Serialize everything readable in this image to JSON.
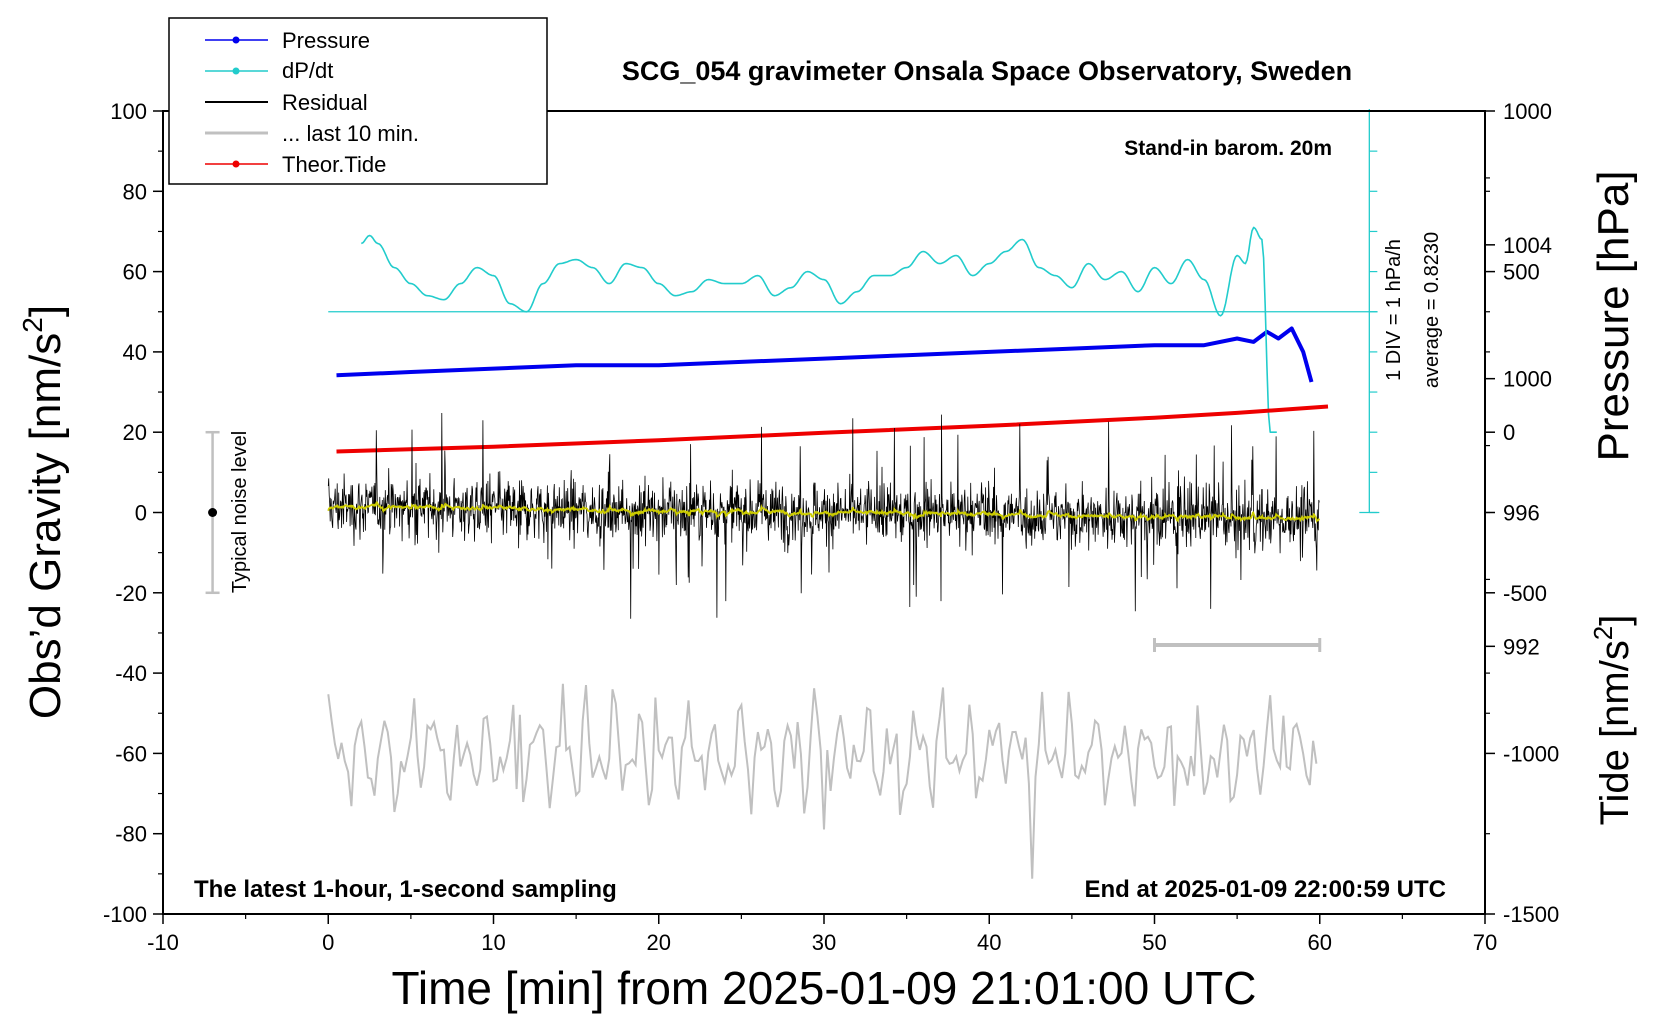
{
  "chart_data": {
    "type": "line",
    "title": "SCG_054 gravimeter Onsala Space Observatory, Sweden",
    "xlabel": "Time [min] from 2025-01-09 21:01:00 UTC",
    "ylabel_left": "Obs’d Gravity [nm/s",
    "ylabel_right_pressure": "Pressure [hPa]",
    "ylabel_right_tide": "Tide [nm/s",
    "superscript": "2",
    "xlim": [
      -10,
      70
    ],
    "ylim_left": [
      -100,
      100
    ],
    "ylim_pressure": [
      984,
      1008
    ],
    "ylim_tide": [
      -1500,
      1000
    ],
    "x_ticks": [
      "-10",
      "0",
      "10",
      "20",
      "30",
      "40",
      "50",
      "60",
      "70"
    ],
    "y_ticks_left": [
      "100",
      "80",
      "60",
      "40",
      "20",
      "0",
      "-20",
      "-40",
      "-60",
      "-80",
      "-100"
    ],
    "y_ticks_pressure": [
      "1004",
      "1000",
      "996",
      "992"
    ],
    "y_ticks_tide": [
      "1000",
      "500",
      "0",
      "-500",
      "-1000",
      "-1500"
    ],
    "legend": [
      "Pressure",
      "dP/dt",
      "Residual",
      "... last 10 min.",
      "Theor.Tide"
    ],
    "colors": {
      "pressure": "#0000ee",
      "dpdt": "#22cccc",
      "residual": "#000000",
      "last10": "#c0c0c0",
      "tide": "#ee0000",
      "smoothed": "#cccc00"
    },
    "annotations": {
      "barometer": "Stand-in barom. 20m",
      "sampling": "The latest 1-hour, 1-second sampling",
      "end_time": "End at 2025-01-09 22:00:59 UTC",
      "noise_level": "Typical noise level",
      "div_scale": "1 DIV = 1 hPa/h",
      "average": "average = 0.8230"
    },
    "noise_bar": {
      "x": -7,
      "y_min": -20,
      "y_max": 20
    },
    "last10_bar": {
      "x_start": 50,
      "x_end": 60,
      "y": -33
    },
    "series": [
      {
        "name": "Pressure",
        "axis": "pressure",
        "x": [
          0.5,
          5,
          10,
          15,
          20,
          25,
          30,
          35,
          40,
          45,
          50,
          53,
          55,
          56,
          56.8,
          57.5,
          58.3,
          59,
          59.5
        ],
        "values": [
          1000.1,
          1000.2,
          1000.3,
          1000.4,
          1000.4,
          1000.5,
          1000.6,
          1000.7,
          1000.8,
          1000.9,
          1001.0,
          1001.0,
          1001.2,
          1001.1,
          1001.4,
          1001.2,
          1001.5,
          1000.8,
          999.9
        ]
      },
      {
        "name": "dP/dt",
        "axis": "left",
        "x": [
          2,
          2.5,
          3,
          4,
          5,
          6,
          7,
          8,
          9,
          10,
          11,
          12,
          13,
          14,
          15,
          16,
          17,
          18,
          19,
          20,
          21,
          22,
          23,
          24,
          25,
          26,
          27,
          28,
          29,
          30,
          31,
          32,
          33,
          34,
          35,
          36,
          37,
          38,
          39,
          40,
          41,
          42,
          43,
          44,
          45,
          46,
          47,
          48,
          49,
          50,
          51,
          52,
          53,
          54,
          55,
          55.5,
          56,
          56.5,
          57,
          57.5
        ],
        "values": [
          67,
          69,
          67,
          61,
          57,
          54,
          53,
          57,
          61,
          59,
          52,
          50,
          57,
          62,
          63,
          61,
          57,
          62,
          61,
          57,
          54,
          55,
          58,
          57,
          57,
          59,
          54,
          56,
          60,
          58,
          52,
          55,
          59,
          59,
          61,
          65,
          62,
          64,
          59,
          62,
          65,
          68,
          61,
          59,
          56,
          62,
          58,
          60,
          55,
          61,
          57,
          63,
          58,
          49,
          64,
          62,
          71,
          68,
          20,
          20
        ]
      },
      {
        "name": "Theor.Tide",
        "axis": "tide",
        "x": [
          0.5,
          10,
          20,
          30,
          40,
          50,
          55,
          60.5
        ],
        "values": [
          -60,
          -45,
          -25,
          -2,
          20,
          45,
          60,
          80
        ]
      }
    ]
  }
}
